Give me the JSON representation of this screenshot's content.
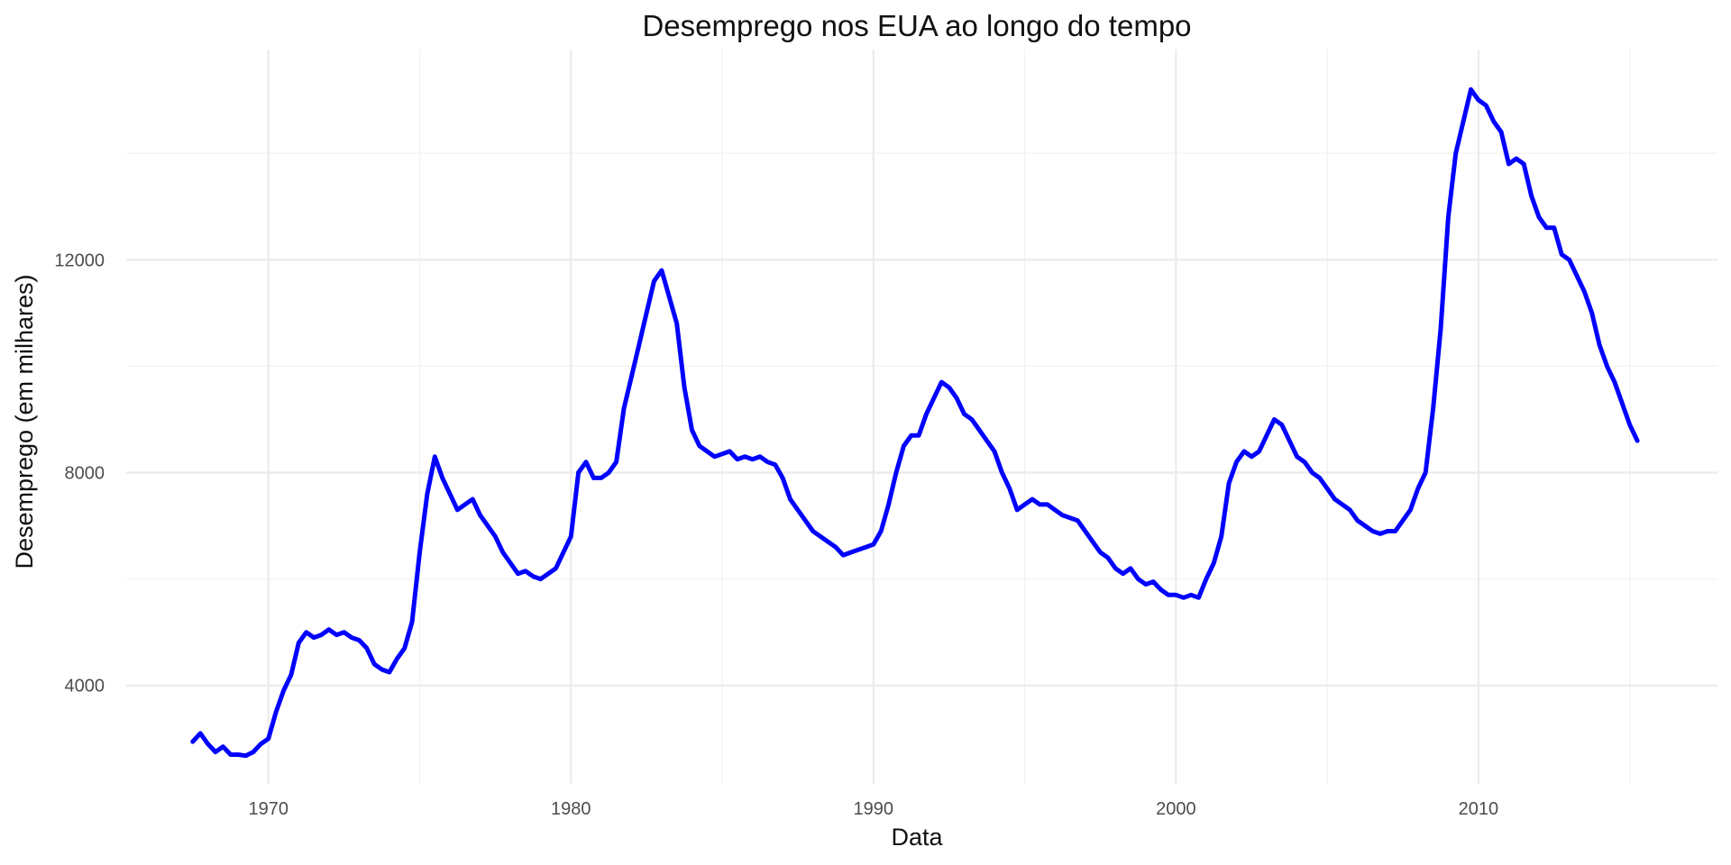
{
  "chart_data": {
    "type": "line",
    "title": "Desemprego nos EUA ao longo do tempo",
    "xlabel": "Data",
    "ylabel": "Desemprego (em milhares)",
    "x_ticks": [
      1970,
      1980,
      1990,
      2000,
      2010
    ],
    "y_ticks": [
      4000,
      8000,
      12000
    ],
    "xlim": [
      1965.3,
      2017.9
    ],
    "ylim": [
      2150,
      15950
    ],
    "grid": true,
    "line_color": "#0000ff",
    "series": [
      {
        "points": [
          [
            1967.5,
            2944
          ],
          [
            1967.75,
            3100
          ],
          [
            1968.0,
            2900
          ],
          [
            1968.25,
            2750
          ],
          [
            1968.5,
            2850
          ],
          [
            1968.75,
            2700
          ],
          [
            1969.0,
            2700
          ],
          [
            1969.25,
            2680
          ],
          [
            1969.5,
            2750
          ],
          [
            1969.75,
            2900
          ],
          [
            1970.0,
            3000
          ],
          [
            1970.25,
            3500
          ],
          [
            1970.5,
            3900
          ],
          [
            1970.75,
            4200
          ],
          [
            1971.0,
            4800
          ],
          [
            1971.25,
            5000
          ],
          [
            1971.5,
            4900
          ],
          [
            1971.75,
            4950
          ],
          [
            1972.0,
            5050
          ],
          [
            1972.25,
            4950
          ],
          [
            1972.5,
            5000
          ],
          [
            1972.75,
            4900
          ],
          [
            1973.0,
            4850
          ],
          [
            1973.25,
            4700
          ],
          [
            1973.5,
            4400
          ],
          [
            1973.75,
            4300
          ],
          [
            1974.0,
            4250
          ],
          [
            1974.25,
            4500
          ],
          [
            1974.5,
            4700
          ],
          [
            1974.75,
            5200
          ],
          [
            1975.0,
            6500
          ],
          [
            1975.25,
            7600
          ],
          [
            1975.5,
            8300
          ],
          [
            1975.75,
            7900
          ],
          [
            1976.0,
            7600
          ],
          [
            1976.25,
            7300
          ],
          [
            1976.5,
            7400
          ],
          [
            1976.75,
            7500
          ],
          [
            1977.0,
            7200
          ],
          [
            1977.25,
            7000
          ],
          [
            1977.5,
            6800
          ],
          [
            1977.75,
            6500
          ],
          [
            1978.0,
            6300
          ],
          [
            1978.25,
            6100
          ],
          [
            1978.5,
            6150
          ],
          [
            1978.75,
            6050
          ],
          [
            1979.0,
            6000
          ],
          [
            1979.25,
            6100
          ],
          [
            1979.5,
            6200
          ],
          [
            1979.75,
            6500
          ],
          [
            1980.0,
            6800
          ],
          [
            1980.25,
            8000
          ],
          [
            1980.5,
            8200
          ],
          [
            1980.75,
            7900
          ],
          [
            1981.0,
            7900
          ],
          [
            1981.25,
            8000
          ],
          [
            1981.5,
            8200
          ],
          [
            1981.75,
            9200
          ],
          [
            1982.0,
            9800
          ],
          [
            1982.25,
            10400
          ],
          [
            1982.5,
            11000
          ],
          [
            1982.75,
            11600
          ],
          [
            1983.0,
            11800
          ],
          [
            1983.25,
            11300
          ],
          [
            1983.5,
            10800
          ],
          [
            1983.75,
            9600
          ],
          [
            1984.0,
            8800
          ],
          [
            1984.25,
            8500
          ],
          [
            1984.5,
            8400
          ],
          [
            1984.75,
            8300
          ],
          [
            1985.0,
            8350
          ],
          [
            1985.25,
            8400
          ],
          [
            1985.5,
            8250
          ],
          [
            1985.75,
            8300
          ],
          [
            1986.0,
            8250
          ],
          [
            1986.25,
            8300
          ],
          [
            1986.5,
            8200
          ],
          [
            1986.75,
            8150
          ],
          [
            1987.0,
            7900
          ],
          [
            1987.25,
            7500
          ],
          [
            1987.5,
            7300
          ],
          [
            1987.75,
            7100
          ],
          [
            1988.0,
            6900
          ],
          [
            1988.25,
            6800
          ],
          [
            1988.5,
            6700
          ],
          [
            1988.75,
            6600
          ],
          [
            1989.0,
            6450
          ],
          [
            1989.25,
            6500
          ],
          [
            1989.5,
            6550
          ],
          [
            1989.75,
            6600
          ],
          [
            1990.0,
            6650
          ],
          [
            1990.25,
            6900
          ],
          [
            1990.5,
            7400
          ],
          [
            1990.75,
            8000
          ],
          [
            1991.0,
            8500
          ],
          [
            1991.25,
            8700
          ],
          [
            1991.5,
            8700
          ],
          [
            1991.75,
            9100
          ],
          [
            1992.0,
            9400
          ],
          [
            1992.25,
            9700
          ],
          [
            1992.5,
            9600
          ],
          [
            1992.75,
            9400
          ],
          [
            1993.0,
            9100
          ],
          [
            1993.25,
            9000
          ],
          [
            1993.5,
            8800
          ],
          [
            1993.75,
            8600
          ],
          [
            1994.0,
            8400
          ],
          [
            1994.25,
            8000
          ],
          [
            1994.5,
            7700
          ],
          [
            1994.75,
            7300
          ],
          [
            1995.0,
            7400
          ],
          [
            1995.25,
            7500
          ],
          [
            1995.5,
            7400
          ],
          [
            1995.75,
            7400
          ],
          [
            1996.0,
            7300
          ],
          [
            1996.25,
            7200
          ],
          [
            1996.5,
            7150
          ],
          [
            1996.75,
            7100
          ],
          [
            1997.0,
            6900
          ],
          [
            1997.25,
            6700
          ],
          [
            1997.5,
            6500
          ],
          [
            1997.75,
            6400
          ],
          [
            1998.0,
            6200
          ],
          [
            1998.25,
            6100
          ],
          [
            1998.5,
            6200
          ],
          [
            1998.75,
            6000
          ],
          [
            1999.0,
            5900
          ],
          [
            1999.25,
            5950
          ],
          [
            1999.5,
            5800
          ],
          [
            1999.75,
            5700
          ],
          [
            2000.0,
            5700
          ],
          [
            2000.25,
            5650
          ],
          [
            2000.5,
            5700
          ],
          [
            2000.75,
            5650
          ],
          [
            2001.0,
            6000
          ],
          [
            2001.25,
            6300
          ],
          [
            2001.5,
            6800
          ],
          [
            2001.75,
            7800
          ],
          [
            2002.0,
            8200
          ],
          [
            2002.25,
            8400
          ],
          [
            2002.5,
            8300
          ],
          [
            2002.75,
            8400
          ],
          [
            2003.0,
            8700
          ],
          [
            2003.25,
            9000
          ],
          [
            2003.5,
            8900
          ],
          [
            2003.75,
            8600
          ],
          [
            2004.0,
            8300
          ],
          [
            2004.25,
            8200
          ],
          [
            2004.5,
            8000
          ],
          [
            2004.75,
            7900
          ],
          [
            2005.0,
            7700
          ],
          [
            2005.25,
            7500
          ],
          [
            2005.5,
            7400
          ],
          [
            2005.75,
            7300
          ],
          [
            2006.0,
            7100
          ],
          [
            2006.25,
            7000
          ],
          [
            2006.5,
            6900
          ],
          [
            2006.75,
            6850
          ],
          [
            2007.0,
            6900
          ],
          [
            2007.25,
            6900
          ],
          [
            2007.5,
            7100
          ],
          [
            2007.75,
            7300
          ],
          [
            2008.0,
            7700
          ],
          [
            2008.25,
            8000
          ],
          [
            2008.5,
            9200
          ],
          [
            2008.75,
            10700
          ],
          [
            2009.0,
            12800
          ],
          [
            2009.25,
            14000
          ],
          [
            2009.5,
            14600
          ],
          [
            2009.75,
            15200
          ],
          [
            2010.0,
            15000
          ],
          [
            2010.25,
            14900
          ],
          [
            2010.5,
            14600
          ],
          [
            2010.75,
            14400
          ],
          [
            2011.0,
            13800
          ],
          [
            2011.25,
            13900
          ],
          [
            2011.5,
            13800
          ],
          [
            2011.75,
            13200
          ],
          [
            2012.0,
            12800
          ],
          [
            2012.25,
            12600
          ],
          [
            2012.5,
            12600
          ],
          [
            2012.75,
            12100
          ],
          [
            2013.0,
            12000
          ],
          [
            2013.25,
            11700
          ],
          [
            2013.5,
            11400
          ],
          [
            2013.75,
            11000
          ],
          [
            2014.0,
            10400
          ],
          [
            2014.25,
            10000
          ],
          [
            2014.5,
            9700
          ],
          [
            2014.75,
            9300
          ],
          [
            2015.0,
            8900
          ],
          [
            2015.25,
            8600
          ]
        ]
      }
    ]
  }
}
